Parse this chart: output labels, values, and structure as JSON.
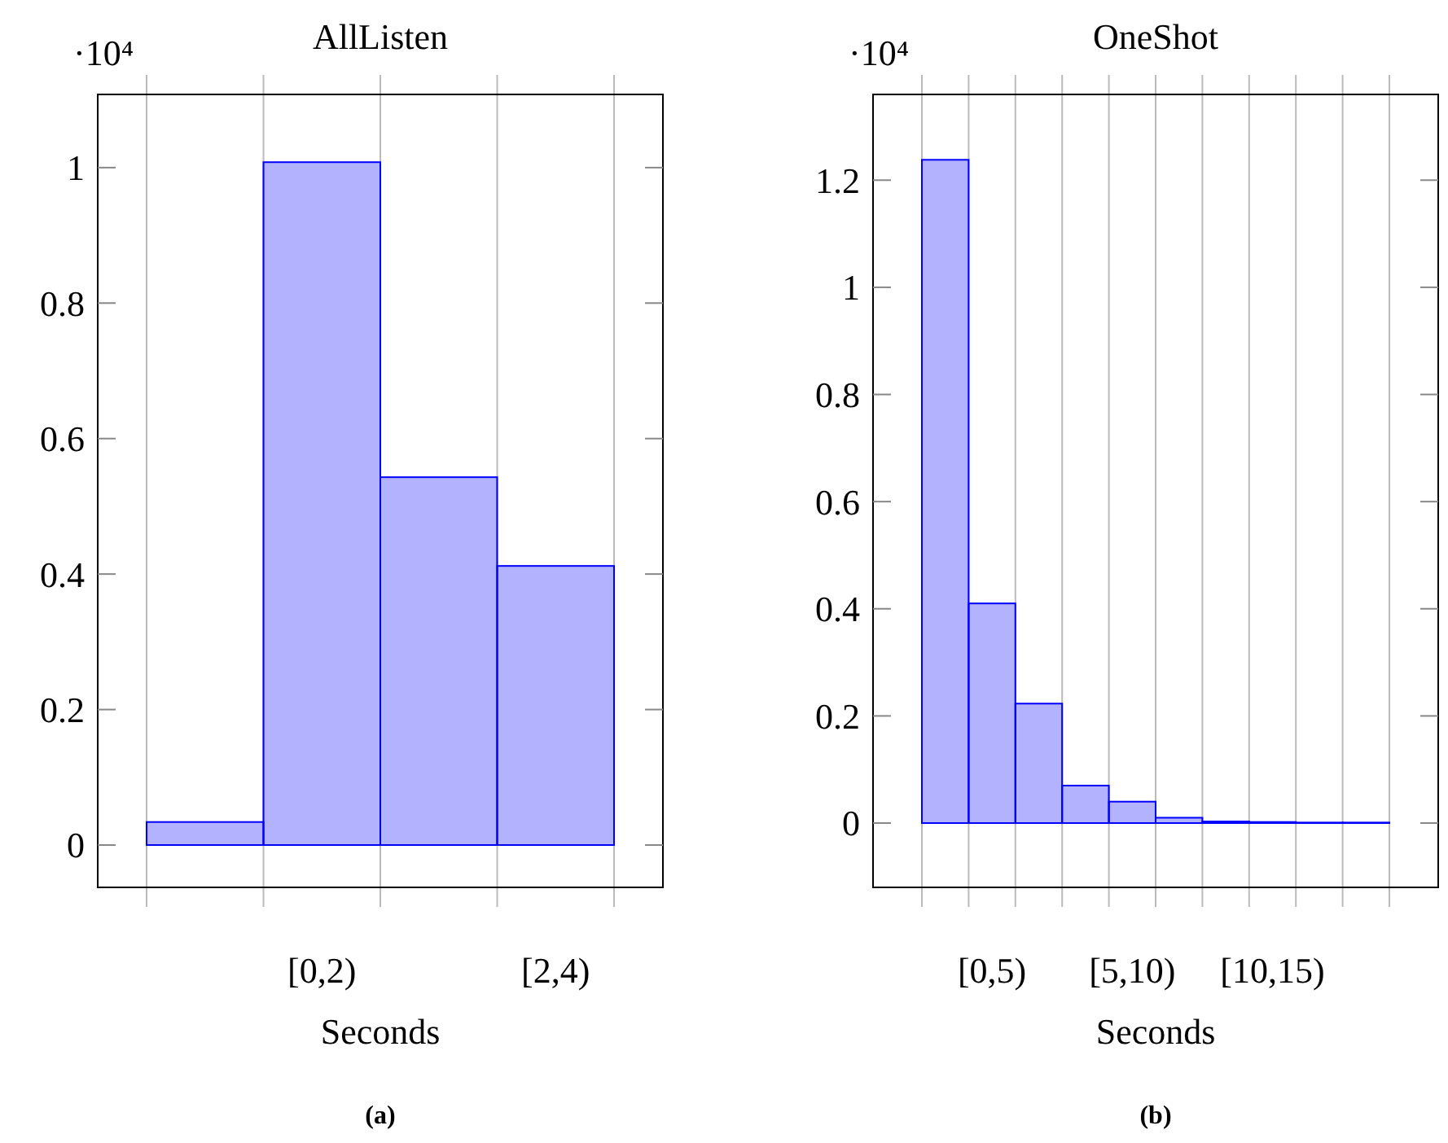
{
  "chart_data": [
    {
      "type": "bar",
      "title": "AllListen",
      "xlabel": "Seconds",
      "annotations": [
        "·10⁴",
        "(a)"
      ],
      "categories": [
        null,
        "[0,2)",
        null,
        "[2,4)"
      ],
      "values": [
        0.034,
        1.008,
        0.543,
        0.412
      ],
      "color": "#0000ff",
      "ylim": [
        -0.0625,
        1.108
      ],
      "yticks": [
        0,
        0.2,
        0.4,
        0.6,
        0.8,
        1
      ],
      "grid": "x"
    },
    {
      "type": "bar",
      "title": "OneShot",
      "xlabel": "Seconds",
      "annotations": [
        "·10⁴",
        "(b)"
      ],
      "categories": [
        null,
        "[0,5)",
        null,
        null,
        "[5,10)",
        null,
        null,
        "[10,15)",
        null,
        null
      ],
      "values": [
        1.238,
        0.41,
        0.223,
        0.07,
        0.04,
        0.01,
        0.003,
        0.002,
        0.001,
        0.001
      ],
      "color": "#0000ff",
      "ylim": [
        -0.12,
        1.36
      ],
      "yticks": [
        0,
        0.2,
        0.4,
        0.6,
        0.8,
        1,
        1.2
      ],
      "grid": "x"
    }
  ]
}
